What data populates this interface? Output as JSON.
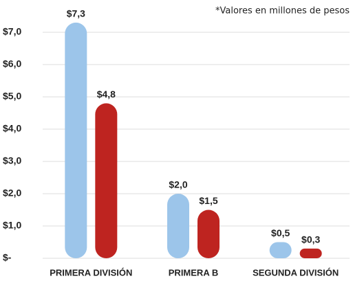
{
  "chart_data": {
    "type": "bar",
    "subtitle": "*Valores en millones de pesos",
    "categories": [
      "PRIMERA DIVISIÓN",
      "PRIMERA B",
      "SEGUNDA DIVISIÓN"
    ],
    "series": [
      {
        "color": "#9cc5ea",
        "values": [
          7.3,
          2.0,
          0.5
        ],
        "value_labels": [
          "$7,3",
          "$2,0",
          "$0,5"
        ]
      },
      {
        "color": "#be2420",
        "values": [
          4.8,
          1.5,
          0.3
        ],
        "value_labels": [
          "$4,8",
          "$1,5",
          "$0,3"
        ]
      }
    ],
    "ylim": [
      0,
      7
    ],
    "yticks": [
      {
        "value": 0,
        "label": "$-"
      },
      {
        "value": 1,
        "label": "$1,0"
      },
      {
        "value": 2,
        "label": "$2,0"
      },
      {
        "value": 3,
        "label": "$3,0"
      },
      {
        "value": 4,
        "label": "$4,0"
      },
      {
        "value": 5,
        "label": "$5,0"
      },
      {
        "value": 6,
        "label": "$6,0"
      },
      {
        "value": 7,
        "label": "$7,0"
      }
    ],
    "grid": true
  }
}
